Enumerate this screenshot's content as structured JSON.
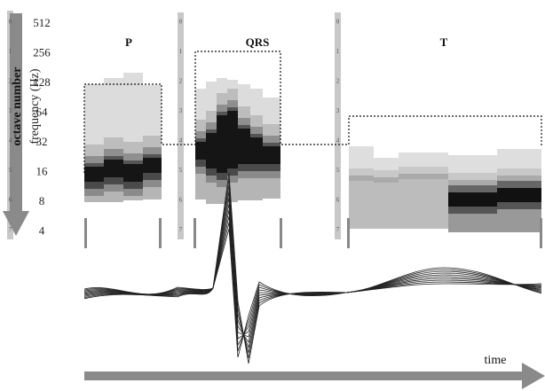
{
  "axis_labels": {
    "octave": "octave number",
    "frequency": "frequency (Hz)"
  },
  "frequencies": [
    "512",
    "256",
    "128",
    "64",
    "32",
    "16",
    "8",
    "4"
  ],
  "octaves": [
    "0",
    "1",
    "2",
    "3",
    "4",
    "5",
    "6",
    "7"
  ],
  "segments": [
    "P",
    "QRS",
    "T"
  ],
  "time_label": "time"
}
